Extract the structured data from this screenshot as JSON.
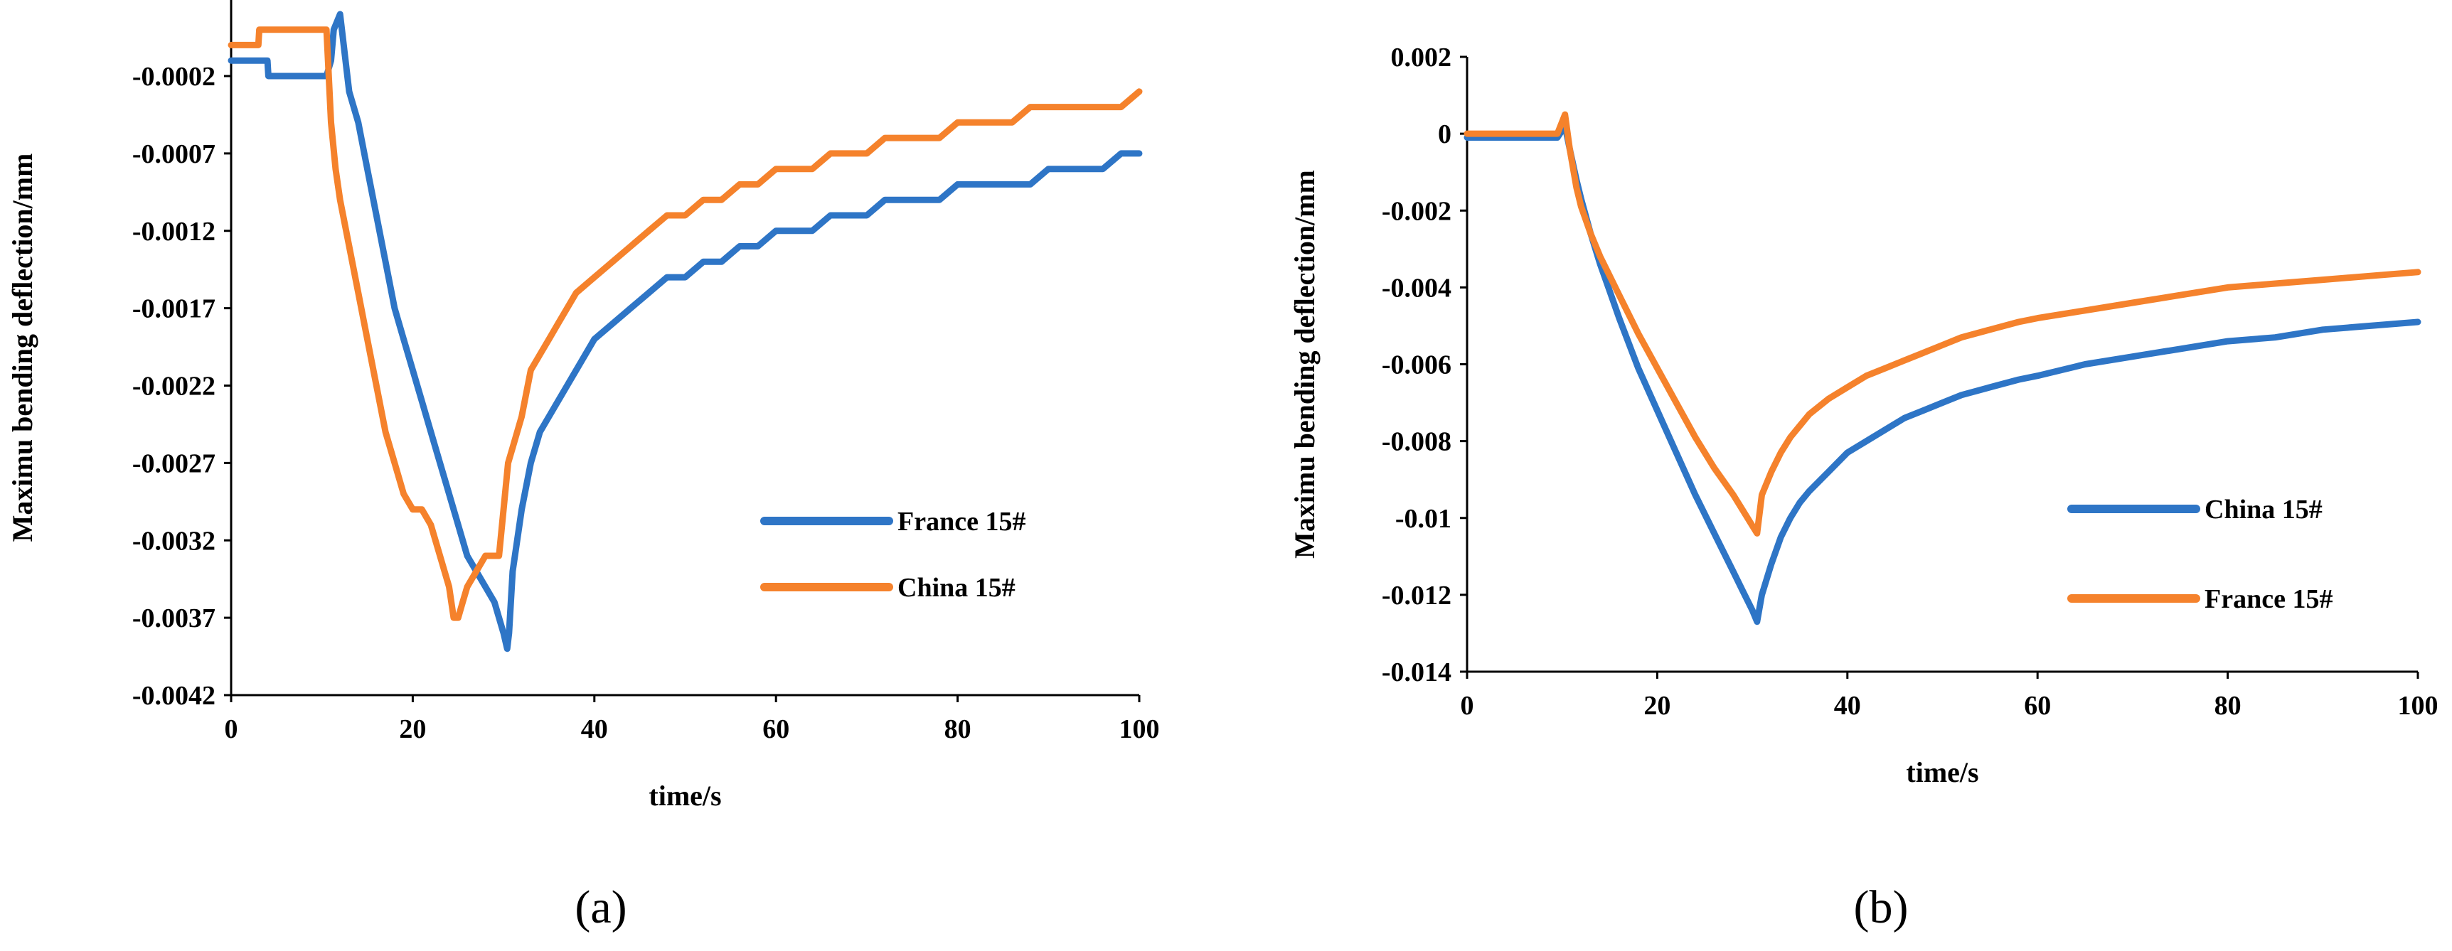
{
  "chart_data": [
    {
      "type": "line",
      "panel_label": "(a)",
      "xlabel": "time/s",
      "ylabel": "Maximu bending deflection/mm",
      "xlim": [
        0,
        100
      ],
      "ylim": [
        -0.0042,
        0.0003
      ],
      "xticks": [
        0,
        20,
        40,
        60,
        80,
        100
      ],
      "xtick_labels": [
        "0",
        "20",
        "40",
        "60",
        "80",
        "100"
      ],
      "yticks": [
        -0.0002,
        -0.0007,
        -0.0012,
        -0.0017,
        -0.0022,
        -0.0027,
        -0.0032,
        -0.0037,
        -0.0042
      ],
      "ytick_labels": [
        "-0.0002",
        "-0.0007",
        "-0.0012",
        "-0.0017",
        "-0.0022",
        "-0.0027",
        "-0.0032",
        "-0.0037",
        "-0.0042"
      ],
      "legend_position": "right",
      "series": [
        {
          "name": "France 15#",
          "color": "#2E75C6",
          "x": [
            0,
            4,
            4.1,
            10.5,
            11,
            11.3,
            12,
            13,
            14,
            15,
            16,
            17,
            18,
            19,
            20,
            21,
            22,
            23,
            24,
            25,
            26,
            27,
            28,
            29,
            29.5,
            30,
            30.4,
            30.6,
            31,
            32,
            33,
            34,
            35,
            36,
            37,
            38,
            40,
            42,
            44,
            46,
            48,
            50,
            52,
            54,
            56,
            58,
            60,
            62,
            64,
            66,
            68,
            70,
            72,
            74,
            76,
            78,
            80,
            82,
            84,
            86,
            88,
            90,
            92,
            94,
            96,
            98,
            100
          ],
          "y": [
            -0.0001,
            -0.0001,
            -0.0002,
            -0.0002,
            -0.0001,
            0.0001,
            0.0002,
            -0.0003,
            -0.0005,
            -0.0008,
            -0.0011,
            -0.0014,
            -0.0017,
            -0.0019,
            -0.0021,
            -0.0023,
            -0.0025,
            -0.0027,
            -0.0029,
            -0.0031,
            -0.0033,
            -0.0034,
            -0.0035,
            -0.0036,
            -0.0037,
            -0.0038,
            -0.0039,
            -0.0038,
            -0.0034,
            -0.003,
            -0.0027,
            -0.0025,
            -0.0024,
            -0.0023,
            -0.0022,
            -0.0021,
            -0.0019,
            -0.0018,
            -0.0017,
            -0.0016,
            -0.0015,
            -0.0015,
            -0.0014,
            -0.0014,
            -0.0013,
            -0.0013,
            -0.0012,
            -0.0012,
            -0.0012,
            -0.0011,
            -0.0011,
            -0.0011,
            -0.001,
            -0.001,
            -0.001,
            -0.001,
            -0.0009,
            -0.0009,
            -0.0009,
            -0.0009,
            -0.0009,
            -0.0008,
            -0.0008,
            -0.0008,
            -0.0008,
            -0.0007,
            -0.0007
          ]
        },
        {
          "name": "China 15#",
          "color": "#F5822C",
          "x": [
            0,
            3,
            3.1,
            10.5,
            11,
            11.5,
            12,
            13,
            14,
            15,
            16,
            17,
            18,
            19,
            20,
            21,
            22,
            23,
            24,
            24.5,
            25,
            25.5,
            26,
            27,
            28,
            29,
            29.5,
            30,
            30.5,
            31,
            32,
            33,
            34,
            35,
            36,
            38,
            40,
            42,
            44,
            46,
            48,
            50,
            52,
            54,
            56,
            58,
            60,
            62,
            64,
            66,
            68,
            70,
            72,
            74,
            76,
            78,
            80,
            82,
            84,
            86,
            88,
            90,
            92,
            94,
            96,
            98,
            100
          ],
          "y": [
            0.0,
            0.0,
            0.0001,
            0.0001,
            -0.0005,
            -0.0008,
            -0.001,
            -0.0013,
            -0.0016,
            -0.0019,
            -0.0022,
            -0.0025,
            -0.0027,
            -0.0029,
            -0.003,
            -0.003,
            -0.0031,
            -0.0033,
            -0.0035,
            -0.0037,
            -0.0037,
            -0.0036,
            -0.0035,
            -0.0034,
            -0.0033,
            -0.0033,
            -0.0033,
            -0.003,
            -0.0027,
            -0.0026,
            -0.0024,
            -0.0021,
            -0.002,
            -0.0019,
            -0.0018,
            -0.0016,
            -0.0015,
            -0.0014,
            -0.0013,
            -0.0012,
            -0.0011,
            -0.0011,
            -0.001,
            -0.001,
            -0.0009,
            -0.0009,
            -0.0008,
            -0.0008,
            -0.0008,
            -0.0007,
            -0.0007,
            -0.0007,
            -0.0006,
            -0.0006,
            -0.0006,
            -0.0006,
            -0.0005,
            -0.0005,
            -0.0005,
            -0.0005,
            -0.0004,
            -0.0004,
            -0.0004,
            -0.0004,
            -0.0004,
            -0.0004,
            -0.0003
          ]
        }
      ]
    },
    {
      "type": "line",
      "panel_label": "(b)",
      "xlabel": "time/s",
      "ylabel": "Maximu bending deflection/mm",
      "xlim": [
        0,
        100
      ],
      "ylim": [
        -0.014,
        0.002
      ],
      "xticks": [
        0,
        20,
        40,
        60,
        80,
        100
      ],
      "xtick_labels": [
        "0",
        "20",
        "40",
        "60",
        "80",
        "100"
      ],
      "yticks": [
        0.002,
        0,
        -0.002,
        -0.004,
        -0.006,
        -0.008,
        -0.01,
        -0.012,
        -0.014
      ],
      "ytick_labels": [
        "0.002",
        "0",
        "-0.002",
        "-0.004",
        "-0.006",
        "-0.008",
        "-0.01",
        "-0.012",
        "-0.014"
      ],
      "legend_position": "right",
      "series": [
        {
          "name": "China 15#",
          "color": "#2E75C6",
          "x": [
            0,
            5,
            9.5,
            10.3,
            10.8,
            11.5,
            12,
            13,
            14,
            15,
            16,
            18,
            20,
            22,
            24,
            26,
            28,
            29,
            30,
            30.5,
            31,
            32,
            33,
            34,
            35,
            36,
            38,
            40,
            42,
            44,
            46,
            48,
            50,
            52,
            55,
            58,
            60,
            65,
            70,
            75,
            80,
            85,
            90,
            95,
            100
          ],
          "y": [
            -0.0001,
            -0.0001,
            -0.0001,
            0.0002,
            -0.0004,
            -0.0012,
            -0.0017,
            -0.0026,
            -0.0034,
            -0.0041,
            -0.0048,
            -0.0061,
            -0.0072,
            -0.0083,
            -0.0094,
            -0.0104,
            -0.0114,
            -0.0119,
            -0.0124,
            -0.0127,
            -0.012,
            -0.0112,
            -0.0105,
            -0.01,
            -0.0096,
            -0.0093,
            -0.0088,
            -0.0083,
            -0.008,
            -0.0077,
            -0.0074,
            -0.0072,
            -0.007,
            -0.0068,
            -0.0066,
            -0.0064,
            -0.0063,
            -0.006,
            -0.0058,
            -0.0056,
            -0.0054,
            -0.0053,
            -0.0051,
            -0.005,
            -0.0049
          ]
        },
        {
          "name": "France 15#",
          "color": "#F5822C",
          "x": [
            0,
            5,
            9.5,
            10.3,
            10.8,
            11.5,
            12,
            13,
            14,
            15,
            16,
            18,
            20,
            22,
            24,
            26,
            28,
            29,
            30,
            30.5,
            31,
            32,
            33,
            34,
            35,
            36,
            38,
            40,
            42,
            44,
            46,
            48,
            50,
            52,
            55,
            58,
            60,
            65,
            70,
            75,
            80,
            85,
            90,
            95,
            100
          ],
          "y": [
            0.0,
            0.0,
            0.0,
            0.0005,
            -0.0004,
            -0.0014,
            -0.0019,
            -0.0026,
            -0.0032,
            -0.0037,
            -0.0042,
            -0.0052,
            -0.0061,
            -0.007,
            -0.0079,
            -0.0087,
            -0.0094,
            -0.0098,
            -0.0102,
            -0.0104,
            -0.0094,
            -0.0088,
            -0.0083,
            -0.0079,
            -0.0076,
            -0.0073,
            -0.0069,
            -0.0066,
            -0.0063,
            -0.0061,
            -0.0059,
            -0.0057,
            -0.0055,
            -0.0053,
            -0.0051,
            -0.0049,
            -0.0048,
            -0.0046,
            -0.0044,
            -0.0042,
            -0.004,
            -0.0039,
            -0.0038,
            -0.0037,
            -0.0036
          ]
        }
      ]
    }
  ]
}
